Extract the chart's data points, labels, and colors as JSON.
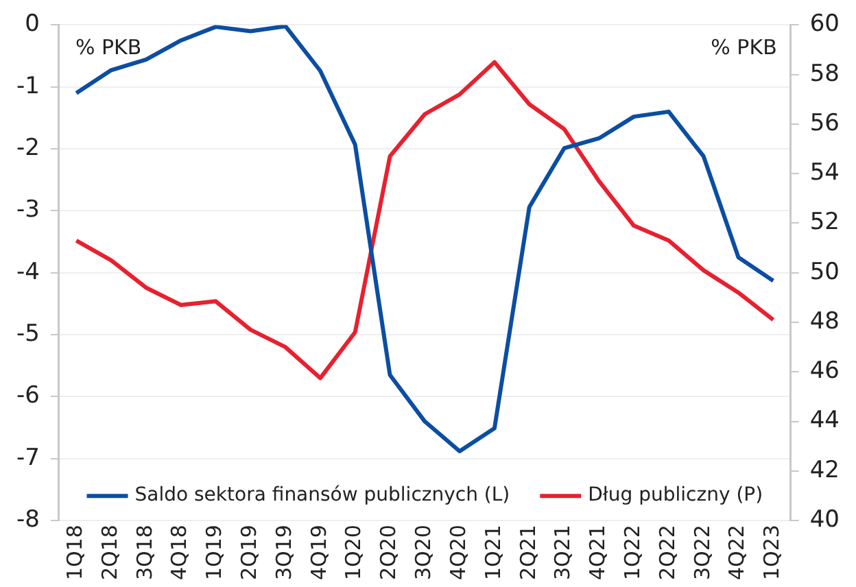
{
  "chart_data": {
    "type": "line",
    "categories": [
      "1Q18",
      "2Q18",
      "3Q18",
      "4Q18",
      "1Q19",
      "2Q19",
      "3Q19",
      "4Q19",
      "1Q20",
      "2Q20",
      "3Q20",
      "4Q20",
      "1Q21",
      "2Q21",
      "3Q21",
      "4Q21",
      "1Q22",
      "2Q22",
      "3Q22",
      "4Q22",
      "1Q23"
    ],
    "series": [
      {
        "name": "Saldo sektora finansów publicznych (L)",
        "color": "#0b4ea2",
        "values": [
          -1.1,
          -0.73,
          -0.56,
          -0.25,
          -0.03,
          -0.1,
          -0.02,
          -0.74,
          -1.93,
          -5.65,
          -6.4,
          -6.88,
          -6.51,
          -2.94,
          -1.99,
          -1.83,
          -1.48,
          -1.4,
          -2.12,
          -3.75,
          -4.13
        ]
      },
      {
        "name": "Dług publiczny (P)",
        "color": "#e8202f",
        "axis": "y2",
        "values": [
          51.3,
          50.5,
          49.4,
          48.7,
          48.85,
          47.7,
          47.0,
          45.75,
          47.6,
          54.7,
          56.4,
          57.2,
          58.5,
          56.8,
          55.8,
          53.7,
          51.9,
          51.3,
          50.1,
          49.2,
          48.1
        ]
      }
    ],
    "ylim": [
      -8,
      0
    ],
    "yticks": [
      -8,
      -7,
      -6,
      -5,
      -4,
      -3,
      -2,
      -1,
      0
    ],
    "y2lim": [
      40,
      60
    ],
    "y2ticks": [
      40,
      42,
      44,
      46,
      48,
      50,
      52,
      54,
      56,
      58,
      60
    ],
    "ylabel": "% PKB",
    "y2label": "% PKB",
    "grid": "y",
    "legend": "bottom",
    "marker": "none",
    "line_style": "solid"
  }
}
